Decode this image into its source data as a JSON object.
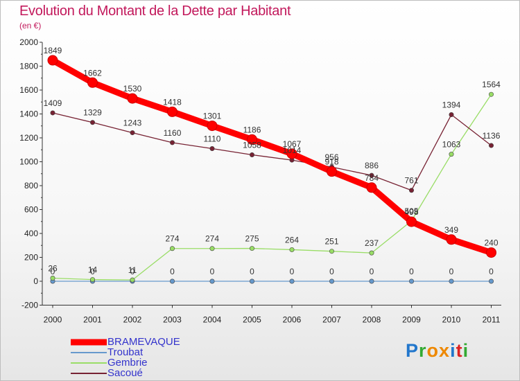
{
  "title": "Evolution du Montant de la Dette par Habitant",
  "unit": "(en €)",
  "logo": "Proxiti",
  "chart_data": {
    "type": "line",
    "x": [
      "2000",
      "2001",
      "2002",
      "2003",
      "2004",
      "2005",
      "2006",
      "2007",
      "2008",
      "2009",
      "2010",
      "2011"
    ],
    "ylim": [
      -200,
      2000
    ],
    "yticks": [
      -200,
      0,
      200,
      400,
      600,
      800,
      1000,
      1200,
      1400,
      1600,
      1800,
      2000
    ],
    "series": [
      {
        "name": "BRAMEVAQUE",
        "color": "#ff0000",
        "values": [
          1849,
          1662,
          1530,
          1418,
          1301,
          1186,
          1067,
          918,
          784,
          498,
          349,
          240
        ]
      },
      {
        "name": "Troubat",
        "color": "#6699cc",
        "values": [
          0,
          0,
          0,
          0,
          0,
          0,
          0,
          0,
          0,
          0,
          0,
          0
        ]
      },
      {
        "name": "Gembrie",
        "color": "#99dd66",
        "values": [
          26,
          14,
          11,
          274,
          274,
          275,
          264,
          251,
          237,
          505,
          1063,
          1564
        ]
      },
      {
        "name": "Sacoué",
        "color": "#772233",
        "values": [
          1409,
          1329,
          1243,
          1160,
          1110,
          1058,
          1014,
          956,
          886,
          761,
          1394,
          1136
        ]
      }
    ]
  }
}
